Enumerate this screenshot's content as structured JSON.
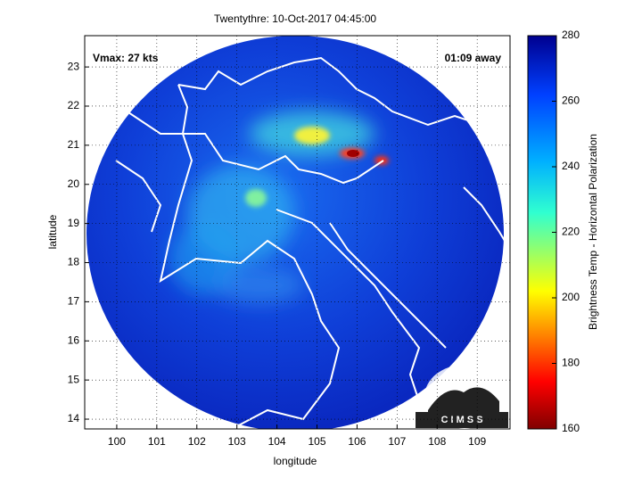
{
  "title": "Twentythre: 10-Oct-2017 04:45:00",
  "annotations": {
    "vmax": "Vmax: 27 kts",
    "away": "01:09 away"
  },
  "x_axis": {
    "label": "longitude",
    "lim": [
      99.2,
      109.82
    ],
    "ticks": [
      100,
      101,
      102,
      103,
      104,
      105,
      106,
      107,
      108,
      109
    ]
  },
  "y_axis": {
    "label": "latitude",
    "lim": [
      13.75,
      23.8
    ],
    "ticks": [
      14,
      15,
      16,
      17,
      18,
      19,
      20,
      21,
      22,
      23
    ]
  },
  "colorbar": {
    "label": "Brightness Temp - Horizontal Polarization",
    "lim": [
      160,
      280
    ],
    "ticks": [
      160,
      180,
      200,
      220,
      240,
      260,
      280
    ]
  },
  "logo": "C I M S S"
}
